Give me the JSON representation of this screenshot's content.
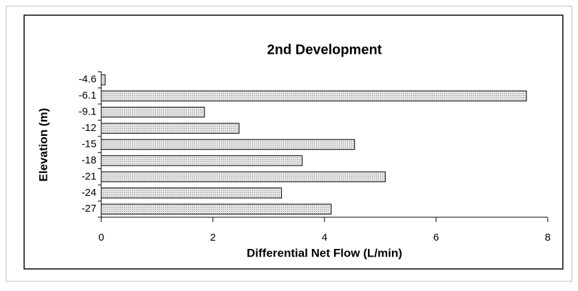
{
  "chart_data": {
    "type": "bar",
    "orientation": "horizontal",
    "title": "2nd Development",
    "x_label": "Differential Net Flow (L/min)",
    "y_label": "Elevation (m)",
    "categories": [
      "-4.6",
      "-6.1",
      "-9.1",
      "-12",
      "-15",
      "-18",
      "-21",
      "-24",
      "-27"
    ],
    "values": [
      0.07,
      7.62,
      1.85,
      2.47,
      4.54,
      3.6,
      5.09,
      3.23,
      4.12
    ],
    "color": "#cfcfcf",
    "xlim": [
      0,
      8
    ],
    "xticks": [
      0,
      2,
      4,
      6,
      8
    ],
    "grid": false
  }
}
